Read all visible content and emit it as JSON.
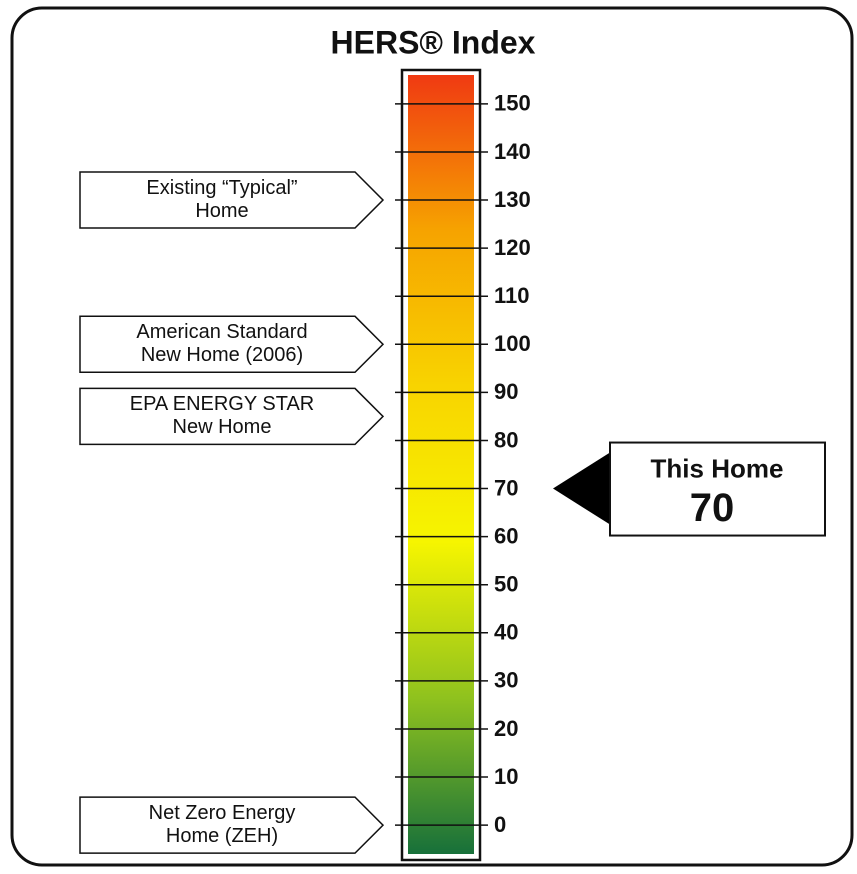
{
  "chart_data": {
    "type": "gauge",
    "title": "HERS® Index",
    "ylim": [
      -6,
      156
    ],
    "yticks": [
      0,
      10,
      20,
      30,
      40,
      50,
      60,
      70,
      80,
      90,
      100,
      110,
      120,
      130,
      140,
      150
    ],
    "gradient": [
      "#17703a",
      "#8fc21e",
      "#f6f500",
      "#f8d400",
      "#f6a300",
      "#f03a12"
    ],
    "markers": [
      {
        "label": [
          "Existing “Typical”",
          "Home"
        ],
        "value": 130
      },
      {
        "label": [
          "American Standard",
          "New Home (2006)"
        ],
        "value": 100
      },
      {
        "label": [
          "EPA ENERGY STAR",
          "New Home"
        ],
        "value": 85
      },
      {
        "label": [
          "Net Zero Energy",
          "Home (ZEH)"
        ],
        "value": 0
      }
    ],
    "pointer": {
      "label": "This Home",
      "value": 70
    }
  }
}
